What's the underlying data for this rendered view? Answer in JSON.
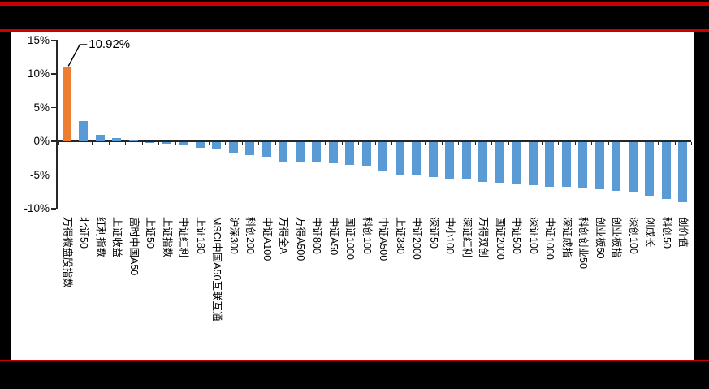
{
  "page": {
    "background_color": "#000000",
    "rule_color": "#CC0000",
    "chart_background": "#FFFFFF"
  },
  "chart_data": {
    "type": "bar",
    "title": "",
    "xlabel": "",
    "ylabel": "",
    "grid": false,
    "legend": null,
    "ylim": [
      -10,
      15
    ],
    "yticks": [
      "15%",
      "10%",
      "5%",
      "0%",
      "-5%",
      "-10%"
    ],
    "ytick_values": [
      15,
      10,
      5,
      0,
      -5,
      -10
    ],
    "categories": [
      "万得微盘股指数",
      "北证50",
      "红利指数",
      "上证收益",
      "富时中国A50",
      "上证50",
      "上证指数",
      "中证红利",
      "上证180",
      "MSCI中国A50互联互通",
      "沪深300",
      "科创200",
      "中证A100",
      "万得全A",
      "万得A500",
      "中证800",
      "中证A50",
      "国证1000",
      "科创100",
      "中证A500",
      "上证380",
      "中证2000",
      "深证50",
      "中小100",
      "深证红利",
      "万得双创",
      "国证2000",
      "中证500",
      "深证100",
      "中证1000",
      "深证成指",
      "科创创业50",
      "创业板50",
      "创业板指",
      "深创100",
      "创成长",
      "科创50",
      "创价值"
    ],
    "values": [
      10.92,
      3.0,
      1.0,
      0.45,
      0.15,
      -0.1,
      -0.25,
      -0.5,
      -0.85,
      -1.1,
      -1.6,
      -2.0,
      -2.25,
      -2.9,
      -3.0,
      -3.1,
      -3.15,
      -3.35,
      -3.6,
      -4.3,
      -4.8,
      -5.0,
      -5.2,
      -5.4,
      -5.6,
      -5.9,
      -6.1,
      -6.2,
      -6.4,
      -6.6,
      -6.7,
      -6.8,
      -7.0,
      -7.2,
      -7.5,
      -8.0,
      -8.5,
      -8.9
    ],
    "highlight_index": 0,
    "bar_colors": {
      "default": "#5B9BD5",
      "highlight": "#ED7D31"
    },
    "axis_color": "#262626",
    "text_color": "#000000",
    "annotation": {
      "text": "10.92%",
      "target_category": "万得微盘股指数"
    }
  }
}
